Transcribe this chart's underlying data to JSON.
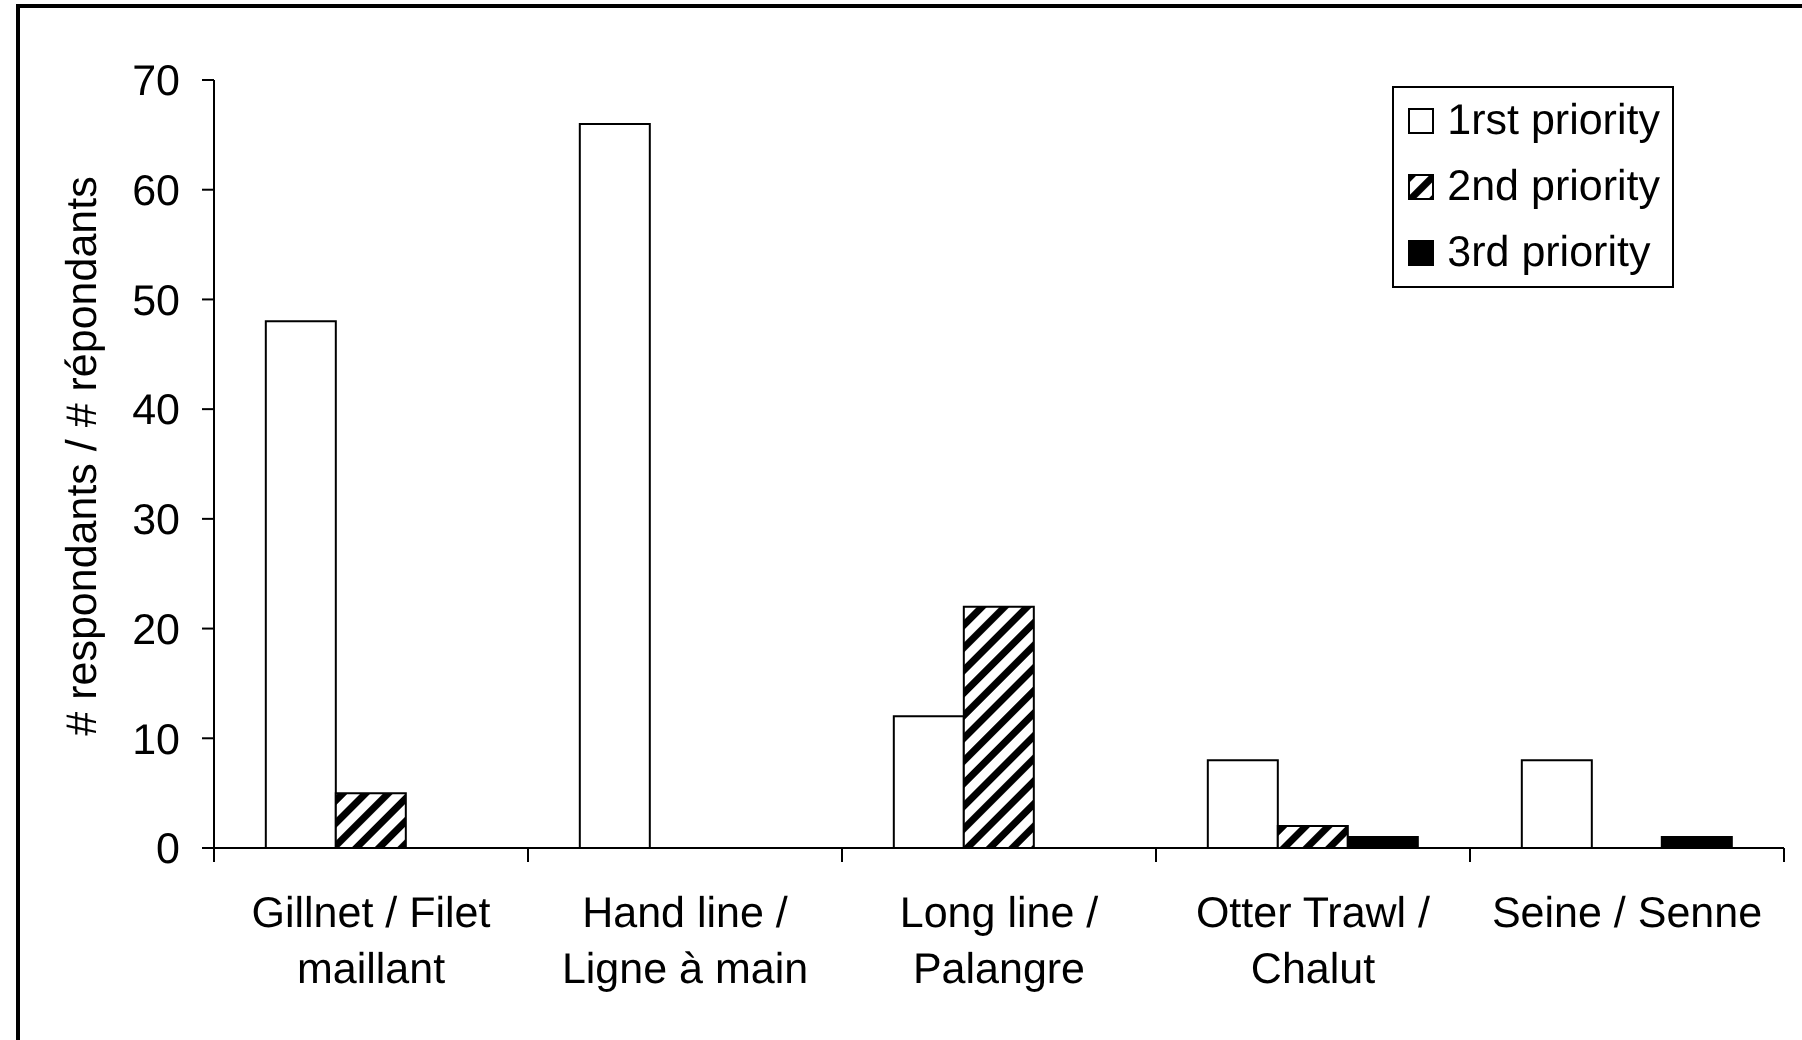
{
  "chart_data": {
    "type": "bar",
    "ylabel": "# respondants / # répondants",
    "categories": [
      "Gillnet / Filet maillant",
      "Hand line / Ligne à main",
      "Long line / Palangre",
      "Otter Trawl / Chalut",
      "Seine / Senne"
    ],
    "series": [
      {
        "name": "1rst priority",
        "color": "#ffffff",
        "values": [
          48,
          66,
          12,
          8,
          8
        ]
      },
      {
        "name": "2nd priority",
        "color": "#000000",
        "values": [
          5,
          0,
          22,
          2,
          0
        ]
      },
      {
        "name": "3rd priority",
        "color": "#000000",
        "values": [
          0,
          0,
          0,
          1,
          1
        ]
      }
    ],
    "ylim": [
      0,
      70
    ],
    "yticks": [
      0,
      10,
      20,
      30,
      40,
      50,
      60,
      70
    ],
    "legend": "top right"
  }
}
